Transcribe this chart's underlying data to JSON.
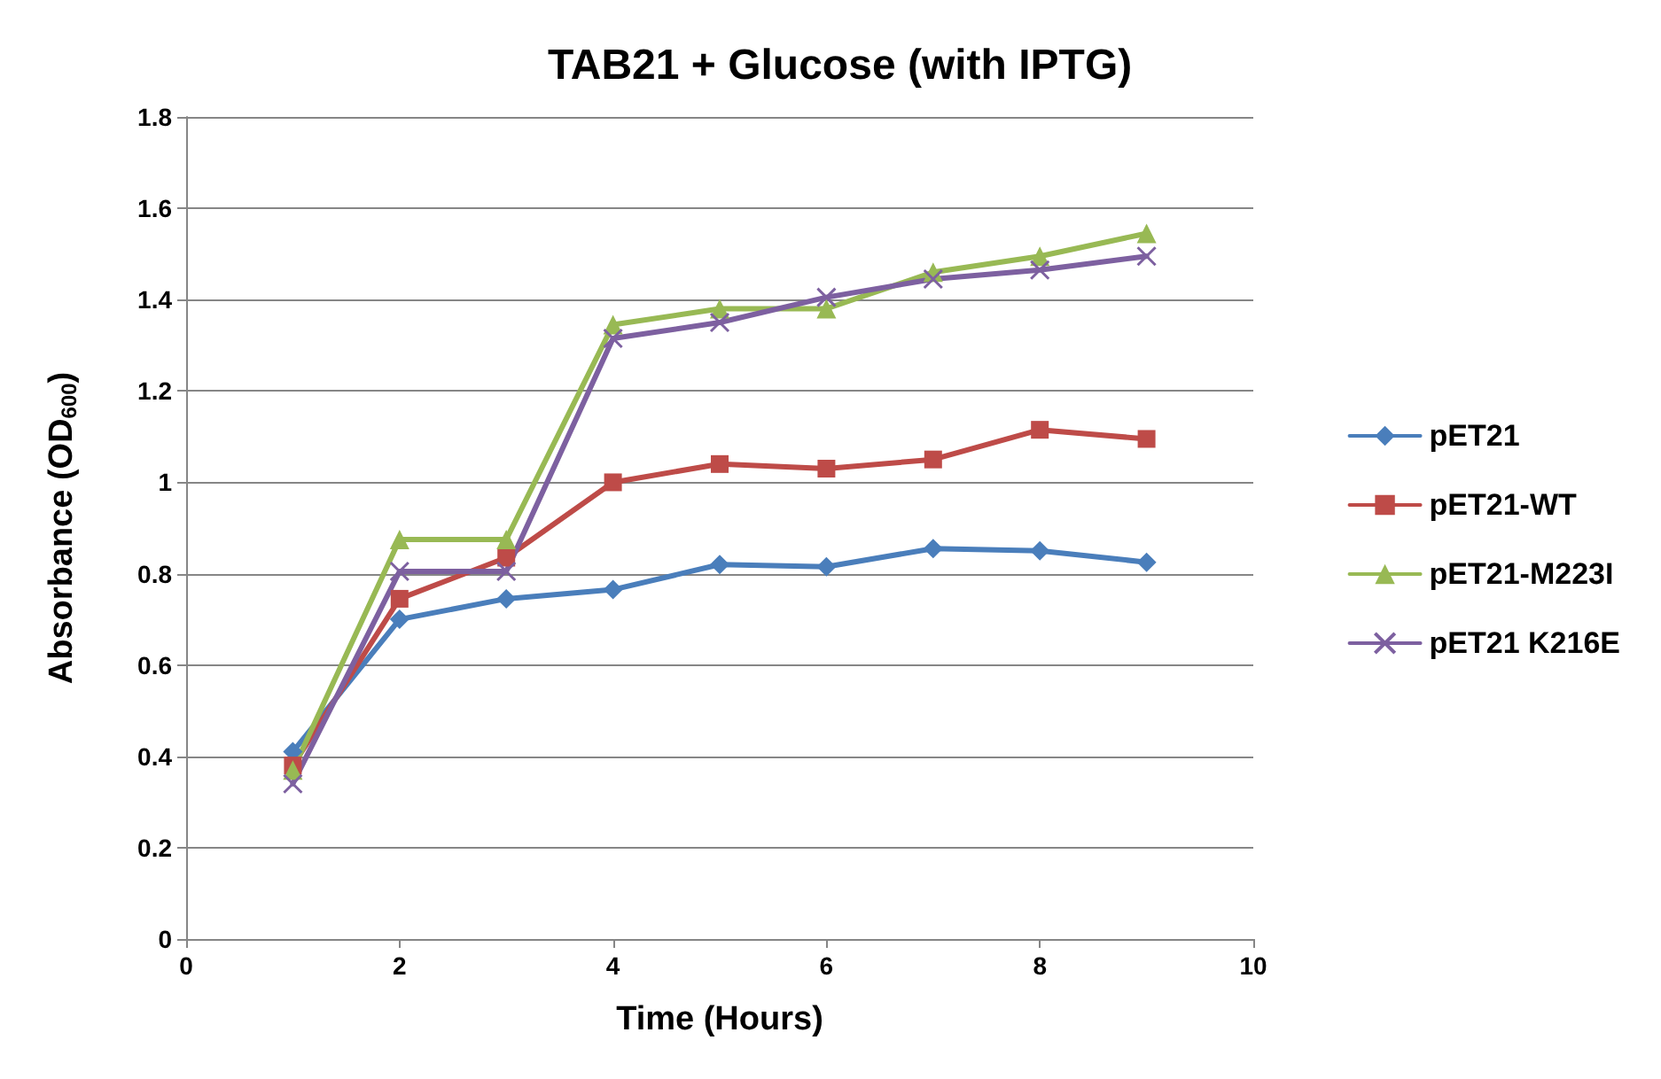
{
  "chart_data": {
    "type": "line",
    "title": "TAB21 + Glucose (with IPTG)",
    "xlabel": "Time (Hours)",
    "ylabel": "Absorbance (OD$_{600}$)",
    "x": [
      1,
      2,
      3,
      4,
      5,
      6,
      7,
      8,
      9
    ],
    "series": [
      {
        "name": "pET21",
        "color": "#4a7ebb",
        "marker": "diamond",
        "values": [
          0.41,
          0.7,
          0.745,
          0.765,
          0.82,
          0.815,
          0.855,
          0.85,
          0.825
        ]
      },
      {
        "name": "pET21-WT",
        "color": "#be4b48",
        "marker": "square",
        "values": [
          0.38,
          0.745,
          0.835,
          1.0,
          1.04,
          1.03,
          1.05,
          1.115,
          1.095
        ]
      },
      {
        "name": "pET21-M223I",
        "color": "#98b954",
        "marker": "triangle",
        "values": [
          0.37,
          0.875,
          0.875,
          1.345,
          1.38,
          1.38,
          1.46,
          1.495,
          1.545
        ]
      },
      {
        "name": "pET21 K216E",
        "color": "#7d60a0",
        "marker": "cross",
        "values": [
          0.34,
          0.805,
          0.805,
          1.315,
          1.35,
          1.405,
          1.445,
          1.465,
          1.495
        ]
      }
    ],
    "xlim": [
      0,
      10
    ],
    "xticks": [
      0,
      2,
      4,
      6,
      8,
      10
    ],
    "ylim": [
      0,
      1.8
    ],
    "yticks": [
      0,
      0.2,
      0.4,
      0.6,
      0.8,
      1,
      1.2,
      1.4,
      1.6,
      1.8
    ],
    "grid": "y",
    "legend": "right",
    "line_style": "solid"
  }
}
